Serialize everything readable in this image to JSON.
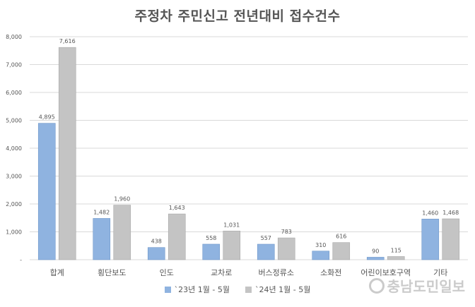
{
  "chart_data": {
    "type": "bar",
    "title": "주정차 주민신고 전년대비 접수건수",
    "categories": [
      "합계",
      "횡단보도",
      "인도",
      "교차로",
      "버스정류소",
      "소화전",
      "어린이보호구역",
      "기타"
    ],
    "series": [
      {
        "name": "`23년 1월 - 5월",
        "values": [
          4895,
          1482,
          438,
          558,
          557,
          310,
          90,
          1460
        ],
        "labels": [
          "4,895",
          "1,482",
          "438",
          "558",
          "557",
          "310",
          "90",
          "1,460"
        ]
      },
      {
        "name": "`24년 1월 - 5월",
        "values": [
          7616,
          1960,
          1643,
          1031,
          783,
          616,
          115,
          1468
        ],
        "labels": [
          "7,616",
          "1,960",
          "1,643",
          "1,031",
          "783",
          "616",
          "115",
          "1,468"
        ]
      }
    ],
    "ylim": [
      0,
      8000
    ],
    "yticks": [
      0,
      1000,
      2000,
      3000,
      4000,
      5000,
      6000,
      7000,
      8000
    ],
    "ytick_labels": [
      "-",
      "1,000",
      "2,000",
      "3,000",
      "4,000",
      "5,000",
      "6,000",
      "7,000",
      "8,000"
    ],
    "xlabel": "",
    "ylabel": "",
    "grid": true,
    "legend_position": "bottom"
  },
  "colors": {
    "series_0": "#8fb3e0",
    "series_1": "#c4c4c4",
    "grid": "#d9d9d9",
    "axis_text": "#555555"
  },
  "watermark": {
    "text": "충남도민일보"
  }
}
